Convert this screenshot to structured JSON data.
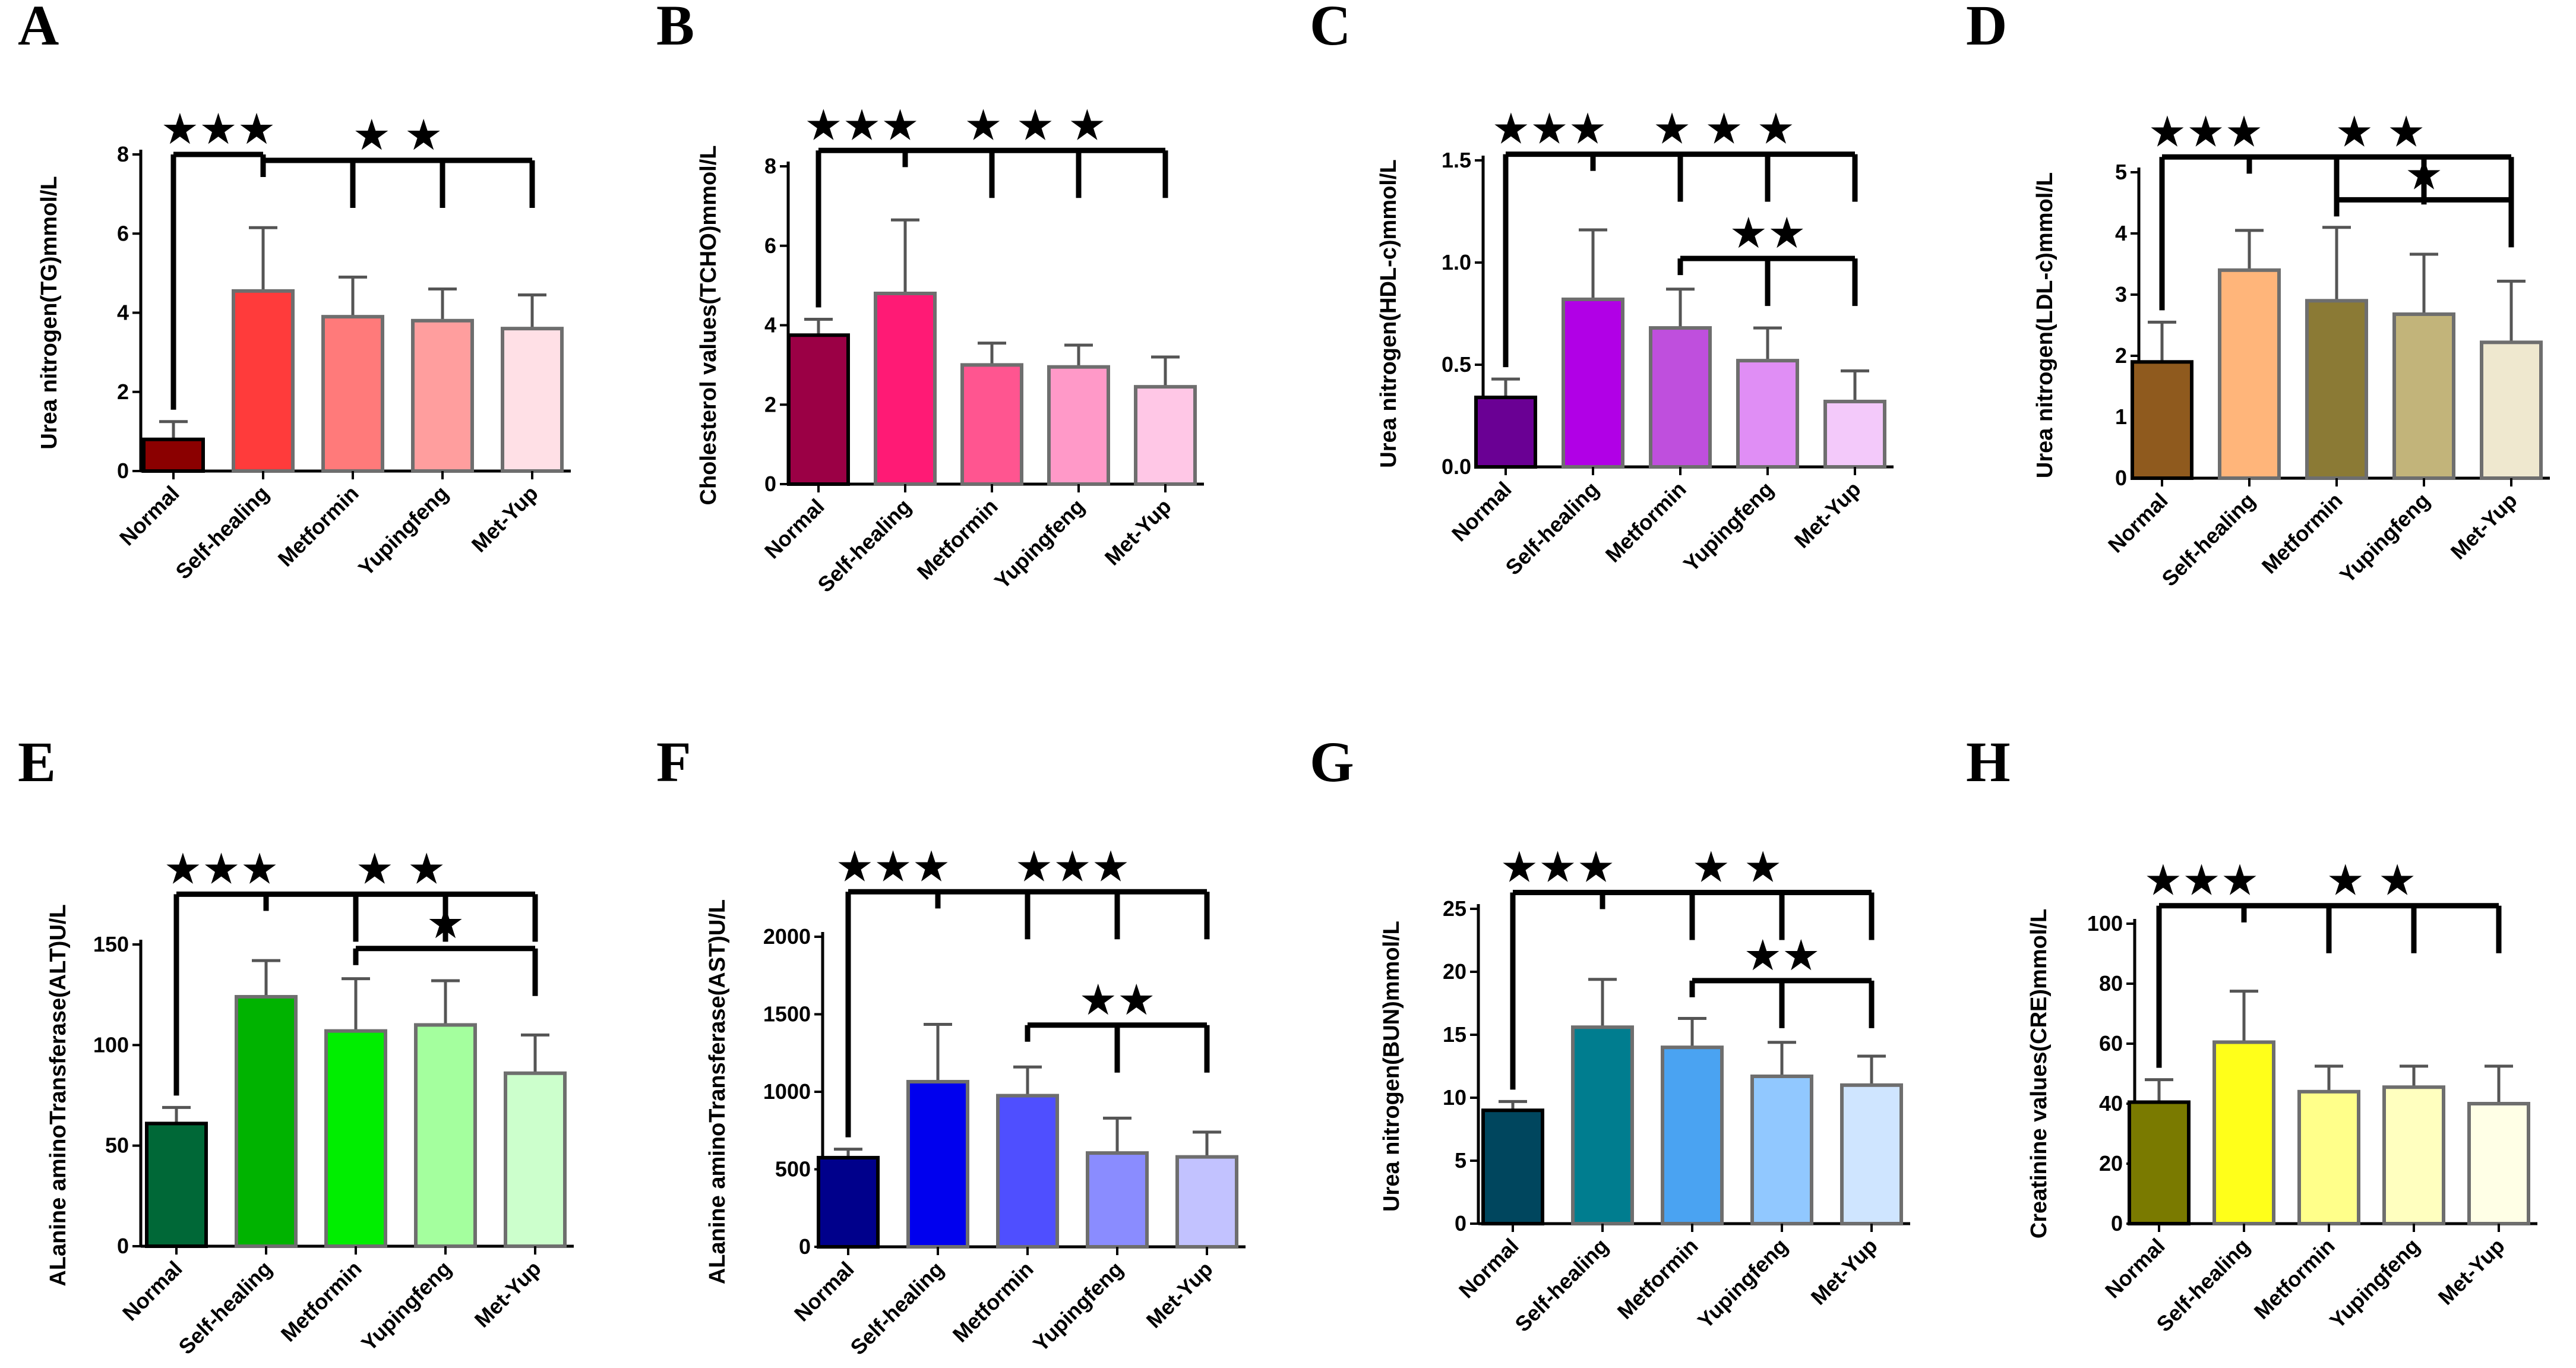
{
  "chart_data": [
    {
      "panel": "A",
      "type": "bar",
      "ylabel": "Urea nitrogen(TG)mmol/L",
      "categories": [
        "Normal",
        "Self-healing",
        "Metformin",
        "Yupingfeng",
        "Met-Yup"
      ],
      "values": [
        0.8,
        4.55,
        3.9,
        3.8,
        3.6
      ],
      "errors": [
        0.45,
        1.6,
        1.0,
        0.8,
        0.85
      ],
      "yticks": [
        "0",
        "2",
        "4",
        "6",
        "8"
      ],
      "ylim": [
        0,
        8
      ],
      "colors": [
        "#8b0000",
        "#ff3b3b",
        "#ff7a7a",
        "#ff9e9e",
        "#ffe0e6"
      ],
      "sig": [
        {
          "label": "★★★",
          "level": 8.0,
          "from": 0,
          "to": [
            1
          ]
        },
        {
          "label": "★ ★",
          "level": 7.85,
          "from": 1,
          "to": [
            2,
            3,
            4
          ]
        }
      ]
    },
    {
      "panel": "B",
      "type": "bar",
      "ylabel": "Cholesterol values(TCHO)mmol/L",
      "categories": [
        "Normal",
        "Self-healing",
        "Metformin",
        "Yupingfeng",
        "Met-Yup"
      ],
      "values": [
        3.75,
        4.8,
        3.0,
        2.95,
        2.45
      ],
      "errors": [
        0.4,
        1.85,
        0.55,
        0.55,
        0.75
      ],
      "yticks": [
        "0",
        "2",
        "4",
        "6",
        "8"
      ],
      "ylim": [
        0,
        8
      ],
      "colors": [
        "#9b0045",
        "#ff1a75",
        "#ff5590",
        "#ff99c8",
        "#ffc7e6"
      ],
      "sig": [
        {
          "label": "★★★",
          "level": 8.4,
          "from": 0,
          "to": [
            1
          ]
        },
        {
          "label": "★ ★ ★",
          "level": 8.4,
          "from": 1,
          "to": [
            2,
            3,
            4
          ]
        }
      ]
    },
    {
      "panel": "C",
      "type": "bar",
      "ylabel": "Urea nitrogen(HDL-c)mmol/L",
      "categories": [
        "Normal",
        "Self-healing",
        "Metformin",
        "Yupingfeng",
        "Met-Yup"
      ],
      "values": [
        0.34,
        0.82,
        0.68,
        0.52,
        0.32
      ],
      "errors": [
        0.09,
        0.34,
        0.19,
        0.16,
        0.15
      ],
      "yticks": [
        "0.0",
        "0.5",
        "1.0",
        "1.5"
      ],
      "ylim": [
        0,
        1.5
      ],
      "colors": [
        "#6a0094",
        "#b100e6",
        "#bf4fdd",
        "#e08ef5",
        "#f3c9fa"
      ],
      "sig": [
        {
          "label": "★★★",
          "level": 1.53,
          "from": 0,
          "to": [
            1
          ]
        },
        {
          "label": "★ ★ ★",
          "level": 1.53,
          "from": 1,
          "to": [
            2,
            3,
            4
          ]
        },
        {
          "label": "★★",
          "level": 1.02,
          "from": 2,
          "to": [
            3,
            4
          ]
        }
      ]
    },
    {
      "panel": "D",
      "type": "bar",
      "ylabel": "Urea nitrogen(LDL-c)mmol/L",
      "categories": [
        "Normal",
        "Self-healing",
        "Metformin",
        "Yupingfeng",
        "Met-Yup"
      ],
      "values": [
        1.9,
        3.4,
        2.9,
        2.68,
        2.22
      ],
      "errors": [
        0.65,
        0.65,
        1.2,
        0.98,
        1.0
      ],
      "yticks": [
        "0",
        "1",
        "2",
        "3",
        "4",
        "5"
      ],
      "ylim": [
        0,
        5
      ],
      "colors": [
        "#8f5a1e",
        "#ffb57a",
        "#8b7a35",
        "#c2b47a",
        "#efe8cf"
      ],
      "sig": [
        {
          "label": "★★★",
          "level": 5.25,
          "from": 0,
          "to": [
            1
          ]
        },
        {
          "label": "★   ★",
          "level": 5.25,
          "from": 1,
          "to": [
            2,
            3,
            4
          ]
        },
        {
          "label": "★",
          "level": 4.55,
          "from": 2,
          "to": [
            4
          ]
        }
      ]
    },
    {
      "panel": "E",
      "type": "bar",
      "ylabel": "ALanine aminoTransferase(ALT)U/L",
      "categories": [
        "Normal",
        "Self-healing",
        "Metformin",
        "Yupingfeng",
        "Met-Yup"
      ],
      "values": [
        61,
        124,
        107,
        110,
        86
      ],
      "errors": [
        8,
        18,
        26,
        22,
        19
      ],
      "yticks": [
        "0",
        "50",
        "100",
        "150"
      ],
      "ylim": [
        0,
        150
      ],
      "colors": [
        "#006837",
        "#00b300",
        "#00ee00",
        "#a4ff9e",
        "#ccffcc"
      ],
      "sig": [
        {
          "label": "★★★",
          "level": 175,
          "from": 0,
          "to": [
            1
          ]
        },
        {
          "label": "★ ★",
          "level": 175,
          "from": 1,
          "to": [
            2,
            3,
            4
          ]
        },
        {
          "label": "★",
          "level": 148,
          "from": 2,
          "to": [
            4
          ]
        }
      ]
    },
    {
      "panel": "F",
      "type": "bar",
      "ylabel": "ALanine aminoTransferase(AST)U/L",
      "categories": [
        "Normal",
        "Self-healing",
        "Metformin",
        "Yupingfeng",
        "Met-Yup"
      ],
      "values": [
        575,
        1065,
        975,
        605,
        580
      ],
      "errors": [
        55,
        370,
        185,
        225,
        160
      ],
      "yticks": [
        "0",
        "500",
        "1000",
        "1500",
        "2000"
      ],
      "ylim": [
        0,
        2000
      ],
      "colors": [
        "#00008b",
        "#0000ee",
        "#4f4fff",
        "#8a8cff",
        "#c2c2ff"
      ],
      "sig": [
        {
          "label": "★★★",
          "level": 2290,
          "from": 0,
          "to": [
            1
          ]
        },
        {
          "label": "★★★",
          "level": 2290,
          "from": 1,
          "to": [
            2,
            3,
            4
          ]
        },
        {
          "label": "★★",
          "level": 1430,
          "from": 2,
          "to": [
            3,
            4
          ]
        }
      ]
    },
    {
      "panel": "G",
      "type": "bar",
      "ylabel": "Urea nitrogen(BUN)mmol/L",
      "categories": [
        "Normal",
        "Self-healing",
        "Metformin",
        "Yupingfeng",
        "Met-Yup"
      ],
      "values": [
        9.0,
        15.6,
        14.0,
        11.7,
        11.0
      ],
      "errors": [
        0.7,
        3.8,
        2.3,
        2.7,
        2.3
      ],
      "yticks": [
        "0",
        "5",
        "10",
        "15",
        "20",
        "25"
      ],
      "ylim": [
        0,
        25
      ],
      "colors": [
        "#00465e",
        "#007d8f",
        "#4aa3f2",
        "#91c8ff",
        "#cfe5ff"
      ],
      "sig": [
        {
          "label": "★★★",
          "level": 26.3,
          "from": 0,
          "to": [
            1
          ]
        },
        {
          "label": "★ ★",
          "level": 26.3,
          "from": 1,
          "to": [
            2,
            3,
            4
          ]
        },
        {
          "label": "★★",
          "level": 19.3,
          "from": 2,
          "to": [
            3,
            4
          ]
        }
      ]
    },
    {
      "panel": "H",
      "type": "bar",
      "ylabel": "Creatinine values(CRE)mmol/L",
      "categories": [
        "Normal",
        "Self-healing",
        "Metformin",
        "Yupingfeng",
        "Met-Yup"
      ],
      "values": [
        40.5,
        60.5,
        44,
        45.5,
        40
      ],
      "errors": [
        7.5,
        17,
        8.5,
        7,
        12.5
      ],
      "yticks": [
        "0",
        "20",
        "40",
        "60",
        "80",
        "100"
      ],
      "ylim": [
        0,
        100
      ],
      "colors": [
        "#7a7a00",
        "#ffff1a",
        "#ffff8a",
        "#ffffbf",
        "#ffffe6"
      ],
      "sig": [
        {
          "label": "★★★",
          "level": 106,
          "from": 0,
          "to": [
            1
          ]
        },
        {
          "label": "★ ★",
          "level": 106,
          "from": 1,
          "to": [
            2,
            3,
            4
          ]
        }
      ]
    }
  ]
}
